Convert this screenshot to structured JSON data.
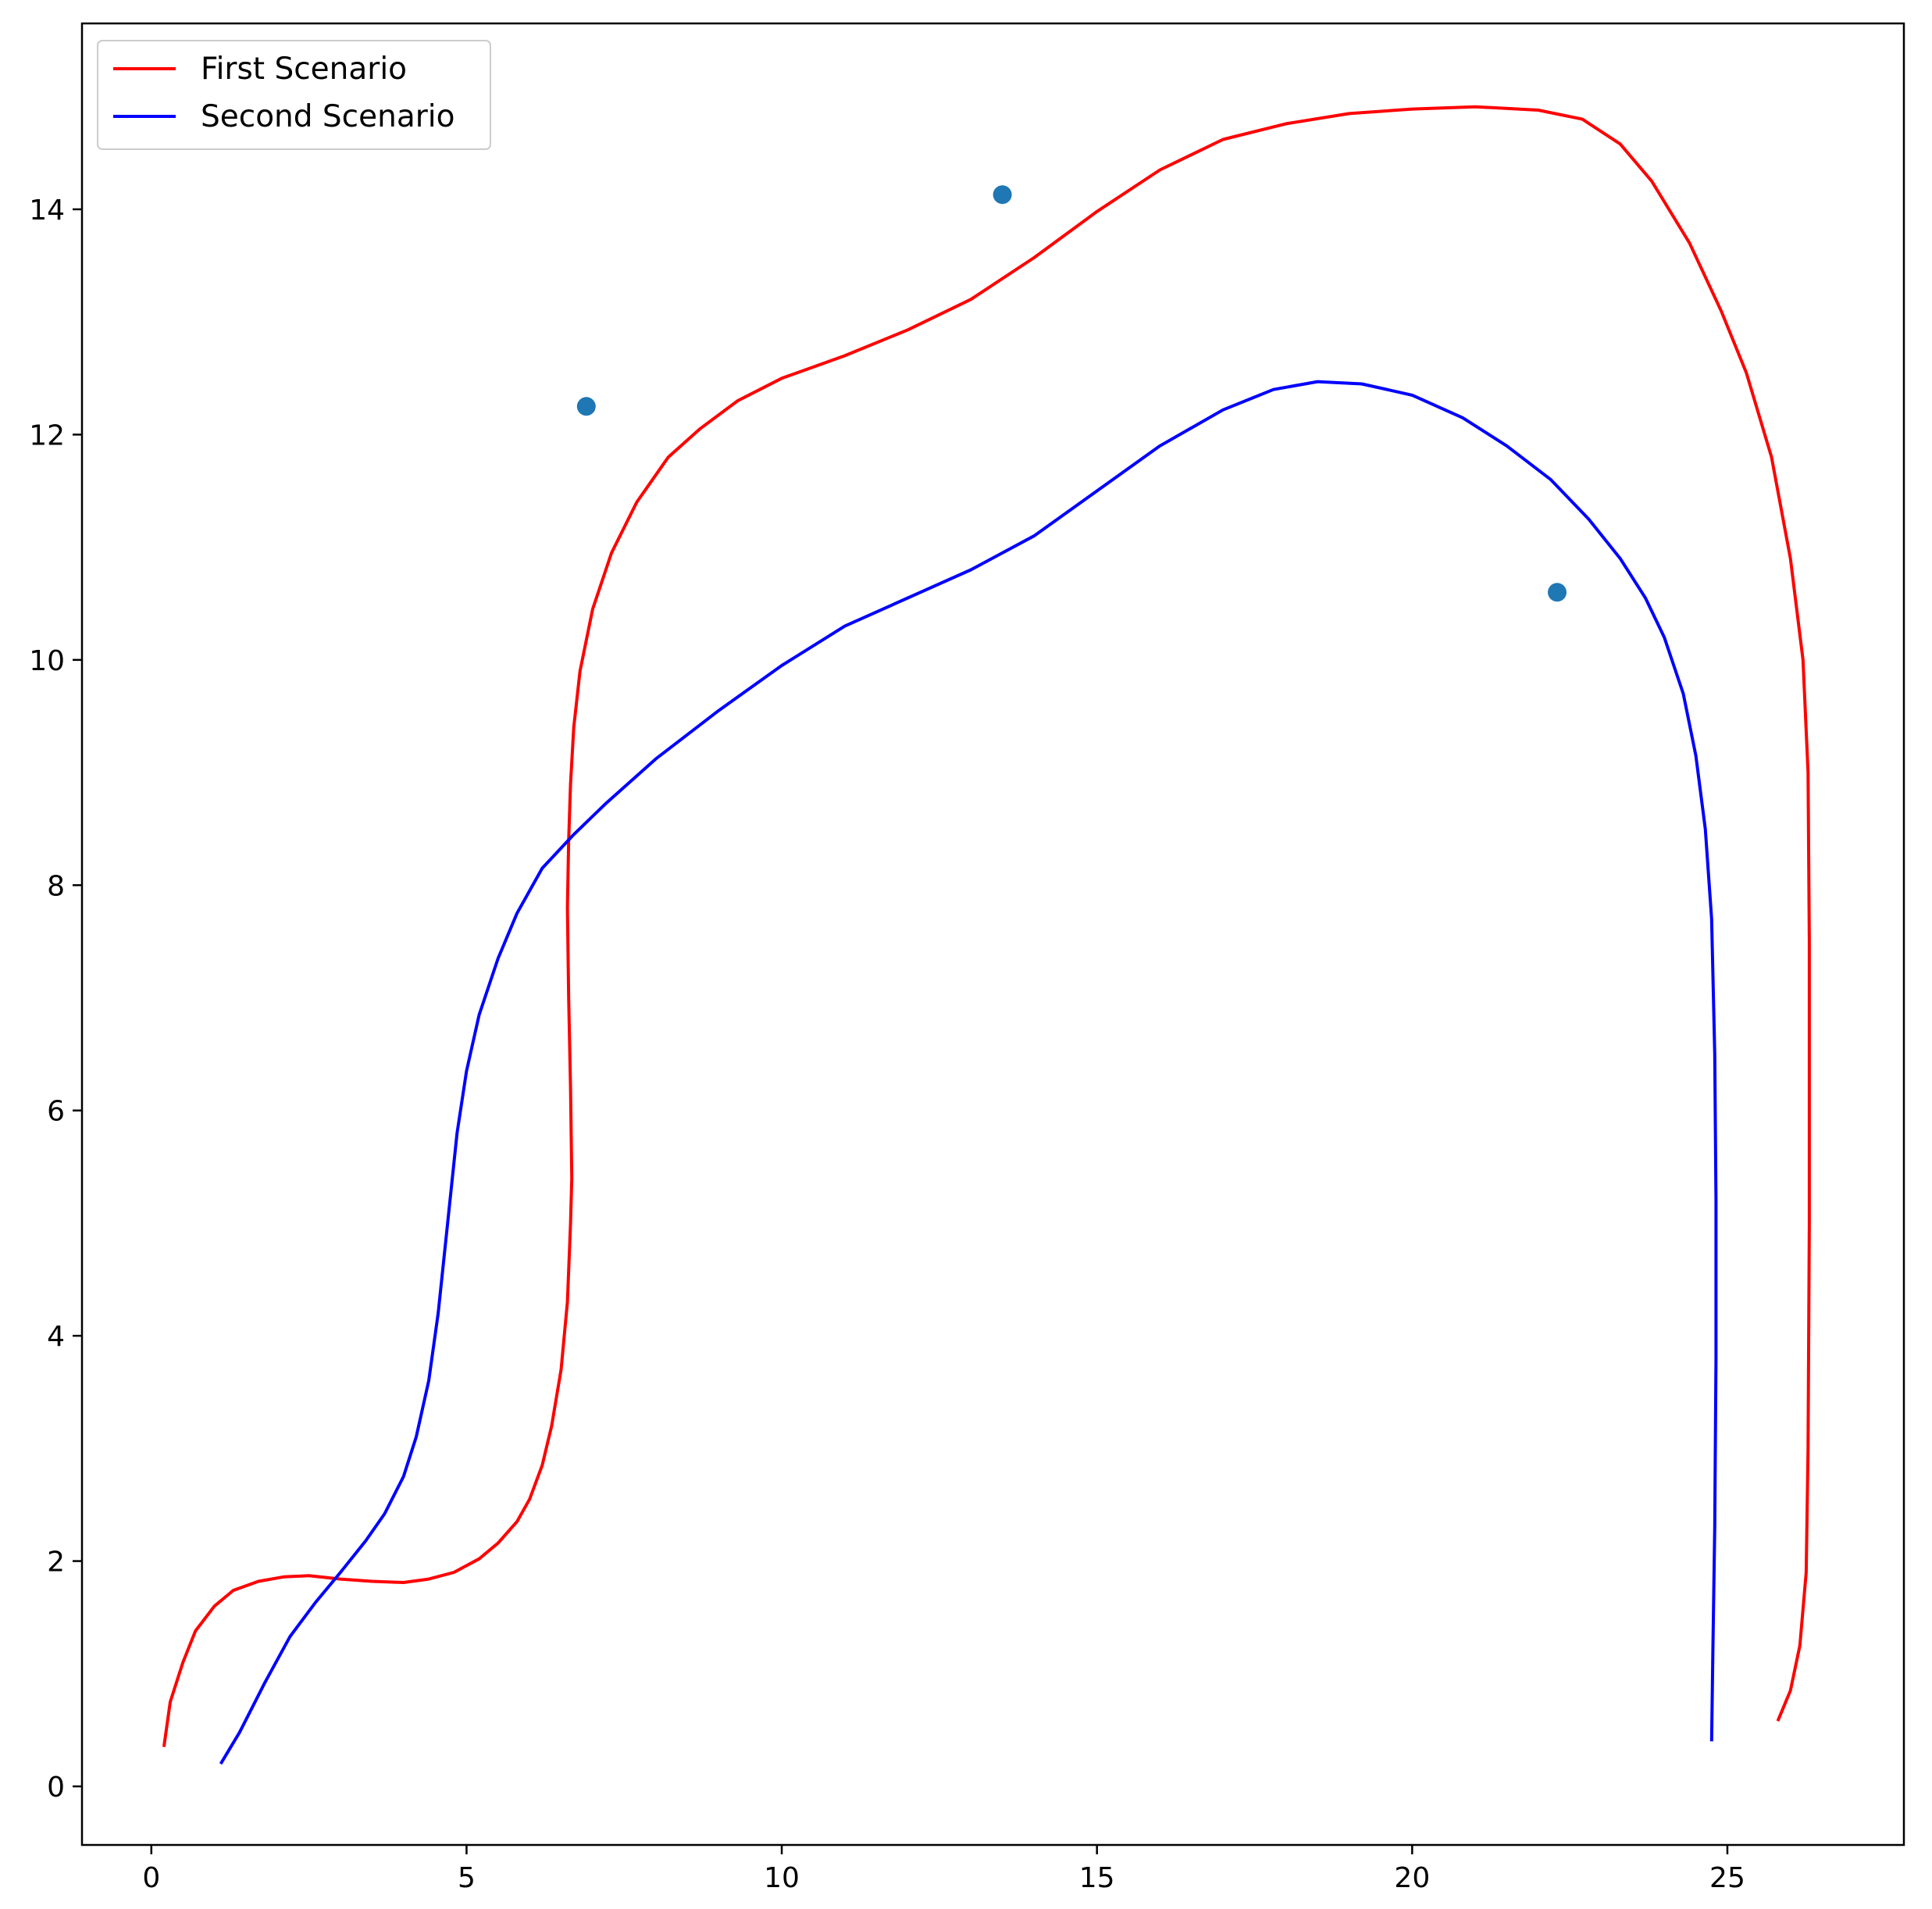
{
  "chart_data": {
    "type": "line",
    "title": "",
    "xlabel": "",
    "ylabel": "",
    "xlim": [
      -1.1,
      27.8
    ],
    "ylim": [
      -0.52,
      15.65
    ],
    "xticks": [
      0,
      5,
      10,
      15,
      20,
      25
    ],
    "yticks": [
      0,
      2,
      4,
      6,
      8,
      10,
      12,
      14
    ],
    "grid": false,
    "legend": {
      "placement": "top-left",
      "entries": [
        {
          "label": "First Scenario",
          "color": "#ff0000"
        },
        {
          "label": "Second Scenario",
          "color": "#0000ff"
        }
      ]
    },
    "series": [
      {
        "name": "First Scenario",
        "color": "#ff0000",
        "points": [
          [
            0.2,
            0.35
          ],
          [
            0.3,
            0.75
          ],
          [
            0.5,
            1.1
          ],
          [
            0.7,
            1.38
          ],
          [
            1.0,
            1.6
          ],
          [
            1.3,
            1.74
          ],
          [
            1.7,
            1.82
          ],
          [
            2.1,
            1.86
          ],
          [
            2.5,
            1.87
          ],
          [
            3.0,
            1.84
          ],
          [
            3.5,
            1.82
          ],
          [
            4.0,
            1.81
          ],
          [
            4.4,
            1.84
          ],
          [
            4.8,
            1.9
          ],
          [
            5.2,
            2.02
          ],
          [
            5.5,
            2.16
          ],
          [
            5.8,
            2.35
          ],
          [
            6.0,
            2.55
          ],
          [
            6.2,
            2.85
          ],
          [
            6.35,
            3.2
          ],
          [
            6.5,
            3.7
          ],
          [
            6.6,
            4.3
          ],
          [
            6.65,
            5.0
          ],
          [
            6.67,
            5.4
          ],
          [
            6.65,
            6.2
          ],
          [
            6.62,
            7.0
          ],
          [
            6.6,
            7.8
          ],
          [
            6.62,
            8.4
          ],
          [
            6.65,
            8.9
          ],
          [
            6.7,
            9.4
          ],
          [
            6.8,
            9.9
          ],
          [
            7.0,
            10.45
          ],
          [
            7.3,
            10.95
          ],
          [
            7.7,
            11.4
          ],
          [
            8.2,
            11.8
          ],
          [
            8.7,
            12.05
          ],
          [
            9.3,
            12.3
          ],
          [
            10.0,
            12.5
          ],
          [
            11.0,
            12.7
          ],
          [
            12.0,
            12.93
          ],
          [
            13.0,
            13.2
          ],
          [
            14.0,
            13.57
          ],
          [
            15.0,
            13.98
          ],
          [
            16.0,
            14.35
          ],
          [
            17.0,
            14.62
          ],
          [
            18.0,
            14.76
          ],
          [
            19.0,
            14.85
          ],
          [
            20.0,
            14.89
          ],
          [
            21.0,
            14.91
          ],
          [
            22.0,
            14.88
          ],
          [
            22.7,
            14.8
          ],
          [
            23.3,
            14.58
          ],
          [
            23.8,
            14.25
          ],
          [
            24.4,
            13.7
          ],
          [
            24.9,
            13.1
          ],
          [
            25.3,
            12.55
          ],
          [
            25.7,
            11.8
          ],
          [
            26.0,
            10.9
          ],
          [
            26.2,
            10.0
          ],
          [
            26.28,
            9.0
          ],
          [
            26.3,
            7.5
          ],
          [
            26.3,
            5.0
          ],
          [
            26.28,
            3.0
          ],
          [
            26.25,
            1.9
          ],
          [
            26.15,
            1.25
          ],
          [
            26.0,
            0.85
          ],
          [
            25.8,
            0.58
          ]
        ]
      },
      {
        "name": "Second Scenario",
        "color": "#0000ff",
        "points": [
          [
            1.1,
            0.2
          ],
          [
            1.4,
            0.48
          ],
          [
            1.8,
            0.92
          ],
          [
            2.2,
            1.33
          ],
          [
            2.6,
            1.63
          ],
          [
            3.0,
            1.9
          ],
          [
            3.4,
            2.18
          ],
          [
            3.7,
            2.42
          ],
          [
            4.0,
            2.75
          ],
          [
            4.2,
            3.1
          ],
          [
            4.4,
            3.6
          ],
          [
            4.55,
            4.2
          ],
          [
            4.7,
            5.0
          ],
          [
            4.85,
            5.8
          ],
          [
            5.0,
            6.35
          ],
          [
            5.2,
            6.85
          ],
          [
            5.5,
            7.35
          ],
          [
            5.8,
            7.75
          ],
          [
            6.2,
            8.15
          ],
          [
            6.7,
            8.45
          ],
          [
            7.2,
            8.72
          ],
          [
            8.0,
            9.12
          ],
          [
            9.0,
            9.55
          ],
          [
            10.0,
            9.95
          ],
          [
            11.0,
            10.3
          ],
          [
            12.0,
            10.55
          ],
          [
            13.0,
            10.8
          ],
          [
            14.0,
            11.1
          ],
          [
            15.0,
            11.5
          ],
          [
            16.0,
            11.9
          ],
          [
            17.0,
            12.22
          ],
          [
            17.8,
            12.4
          ],
          [
            18.5,
            12.47
          ],
          [
            19.2,
            12.45
          ],
          [
            20.0,
            12.35
          ],
          [
            20.8,
            12.15
          ],
          [
            21.5,
            11.9
          ],
          [
            22.2,
            11.6
          ],
          [
            22.8,
            11.25
          ],
          [
            23.3,
            10.9
          ],
          [
            23.7,
            10.55
          ],
          [
            24.0,
            10.2
          ],
          [
            24.3,
            9.7
          ],
          [
            24.5,
            9.15
          ],
          [
            24.65,
            8.5
          ],
          [
            24.75,
            7.7
          ],
          [
            24.8,
            6.5
          ],
          [
            24.82,
            5.2
          ],
          [
            24.82,
            3.8
          ],
          [
            24.8,
            2.3
          ],
          [
            24.77,
            1.2
          ],
          [
            24.75,
            0.4
          ]
        ]
      }
    ],
    "scatter": {
      "color": "#1f77b4",
      "points": [
        [
          6.9,
          12.25
        ],
        [
          13.5,
          14.13
        ],
        [
          22.3,
          10.6
        ]
      ]
    }
  }
}
